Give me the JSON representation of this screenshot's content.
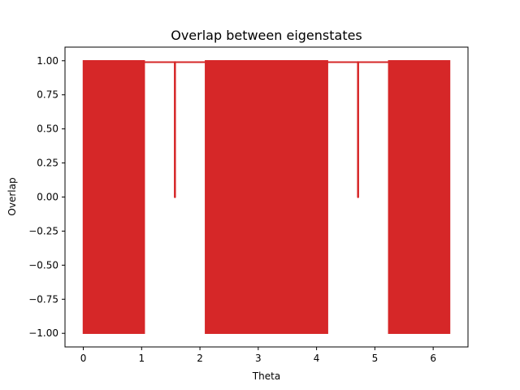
{
  "chart_data": {
    "type": "line",
    "title": "Overlap between eigenstates",
    "xlabel": "Theta",
    "ylabel": "Overlap",
    "xlim": [
      -0.314,
      6.597
    ],
    "ylim": [
      -1.1,
      1.1
    ],
    "xticks": [
      0,
      1,
      2,
      3,
      4,
      5,
      6
    ],
    "yticks": [
      -1.0,
      -0.75,
      -0.5,
      -0.25,
      0.0,
      0.25,
      0.5,
      0.75,
      1.0
    ],
    "xtick_labels": [
      "0",
      "1",
      "2",
      "3",
      "4",
      "5",
      "6"
    ],
    "ytick_labels": [
      "−1.00",
      "−0.75",
      "−0.50",
      "−0.25",
      "0.00",
      "0.25",
      "0.50",
      "0.75",
      "1.00"
    ],
    "grid": false,
    "legend": "none",
    "series": [
      {
        "color": "#d62728",
        "oscillating_bands": [
          {
            "x": [
              0.0,
              1.047
            ],
            "values": [
              -1.0,
              1.0
            ]
          },
          {
            "x": [
              2.094,
              4.189
            ],
            "values": [
              -1.0,
              1.0
            ]
          },
          {
            "x": [
              5.236,
              6.283
            ],
            "values": [
              -1.0,
              1.0
            ]
          }
        ],
        "flat_segments": [
          {
            "x": [
              1.047,
              2.094
            ],
            "value": 0.99
          },
          {
            "x": [
              4.189,
              5.236
            ],
            "value": 0.99
          }
        ],
        "dips": [
          {
            "x": 1.571,
            "value": 0.0
          },
          {
            "x": 4.712,
            "value": 0.0
          }
        ]
      }
    ]
  }
}
